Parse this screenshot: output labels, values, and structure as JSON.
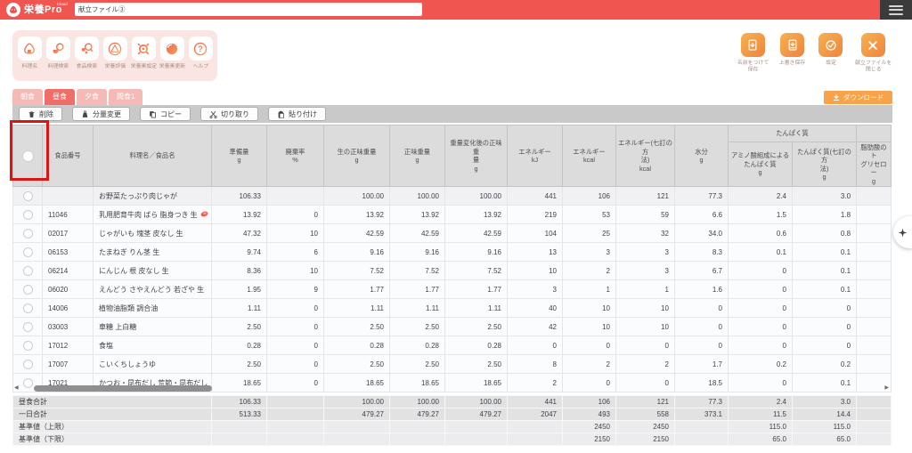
{
  "topbar": {
    "app_name": "栄養Pro",
    "app_badge": "Cloud",
    "file_name": "献立ファイル③"
  },
  "main_toolbar": {
    "items": [
      {
        "label": "料理名",
        "icon": "onigiri-icon"
      },
      {
        "label": "料理検索",
        "icon": "dish-search-icon"
      },
      {
        "label": "食品検索",
        "icon": "food-search-icon"
      },
      {
        "label": "栄養評価",
        "icon": "nutrition-pyramid-icon"
      },
      {
        "label": "栄養素設定",
        "icon": "nutrient-settings-gear-icon"
      },
      {
        "label": "栄養素更新",
        "icon": "nutrient-refresh-icon"
      },
      {
        "label": "ヘルプ",
        "icon": "help-icon"
      }
    ]
  },
  "file_actions": {
    "items": [
      {
        "label": "名前をつけて\n保存",
        "icon": "save-as-icon"
      },
      {
        "label": "上書き保存",
        "icon": "overwrite-save-icon"
      },
      {
        "label": "設定",
        "icon": "settings-icon"
      },
      {
        "label": "献立ファイルを\n閉じる",
        "icon": "close-file-icon"
      }
    ]
  },
  "meal_tabs": [
    {
      "label": "朝食",
      "active": false
    },
    {
      "label": "昼食",
      "active": true
    },
    {
      "label": "夕食",
      "active": false
    },
    {
      "label": "間食1",
      "active": false
    }
  ],
  "download_button": {
    "label": "ダウンロード",
    "icon": "download-icon"
  },
  "edit_toolbar": [
    {
      "label": "削除",
      "icon": "delete-icon"
    },
    {
      "label": "分量変更",
      "icon": "amount-change-icon"
    },
    {
      "label": "コピー",
      "icon": "copy-icon"
    },
    {
      "label": "切り取り",
      "icon": "cut-icon"
    },
    {
      "label": "貼り付け",
      "icon": "paste-icon"
    }
  ],
  "colors": {
    "topbar_red": "#f0554f",
    "panel_pink": "#fbe5e2",
    "tab_active": "#ef6f68",
    "tab_inactive": "#f6bab6",
    "download_orange": "#f8a24a",
    "annotation_red": "#d91616"
  },
  "table": {
    "protein_group_label": "たんぱく質",
    "columns": [
      {
        "label": "食品番号"
      },
      {
        "label": "料理名／食品名"
      },
      {
        "label": "準備量\ng"
      },
      {
        "label": "廃棄率\n%"
      },
      {
        "label": "生の正味重量\ng"
      },
      {
        "label": "正味重量\ng"
      },
      {
        "label": "重量変化後の正味重\n量\ng"
      },
      {
        "label": "エネルギー\nkJ"
      },
      {
        "label": "エネルギー\nkcal"
      },
      {
        "label": "エネルギー(七訂の方\n法)\nkcal"
      },
      {
        "label": "水分\ng"
      },
      {
        "label": "アミノ酸組成による\nたんぱく質\ng"
      },
      {
        "label": "たんぱく質(七訂の方\n法)\ng"
      },
      {
        "label": "脂肪酸のト\nグリセロー\ng"
      }
    ],
    "rows": [
      {
        "no": "",
        "name": "お野菜たっぷり肉じゃが",
        "recipe": true,
        "meat_icon": false,
        "values": [
          "106.33",
          "",
          "100.00",
          "100.00",
          "100.00",
          "441",
          "106",
          "121",
          "77.3",
          "2.4",
          "3.0",
          ""
        ]
      },
      {
        "no": "11046",
        "name": "乳用肥育牛肉 ばら 脂身つき 生",
        "recipe": false,
        "meat_icon": true,
        "values": [
          "13.92",
          "0",
          "13.92",
          "13.92",
          "13.92",
          "219",
          "53",
          "59",
          "6.6",
          "1.5",
          "1.8",
          ""
        ]
      },
      {
        "no": "02017",
        "name": "じゃがいも 塊茎 皮なし 生",
        "recipe": false,
        "meat_icon": false,
        "values": [
          "47.32",
          "10",
          "42.59",
          "42.59",
          "42.59",
          "104",
          "25",
          "32",
          "34.0",
          "0.6",
          "0.8",
          ""
        ]
      },
      {
        "no": "06153",
        "name": "たまねぎ りん茎 生",
        "recipe": false,
        "meat_icon": false,
        "values": [
          "9.74",
          "6",
          "9.16",
          "9.16",
          "9.16",
          "13",
          "3",
          "3",
          "8.3",
          "0.1",
          "0.1",
          ""
        ]
      },
      {
        "no": "06214",
        "name": "にんじん 根 皮なし 生",
        "recipe": false,
        "meat_icon": false,
        "values": [
          "8.36",
          "10",
          "7.52",
          "7.52",
          "7.52",
          "10",
          "2",
          "3",
          "6.7",
          "0",
          "0.1",
          ""
        ]
      },
      {
        "no": "06020",
        "name": "えんどう さやえんどう 若ざや 生",
        "recipe": false,
        "meat_icon": false,
        "values": [
          "1.95",
          "9",
          "1.77",
          "1.77",
          "1.77",
          "3",
          "1",
          "1",
          "1.6",
          "0",
          "0.1",
          ""
        ]
      },
      {
        "no": "14006",
        "name": "植物油脂類 調合油",
        "recipe": false,
        "meat_icon": false,
        "values": [
          "1.11",
          "0",
          "1.11",
          "1.11",
          "1.11",
          "40",
          "10",
          "10",
          "0",
          "0",
          "0",
          ""
        ]
      },
      {
        "no": "03003",
        "name": "車糖 上白糖",
        "recipe": false,
        "meat_icon": false,
        "values": [
          "2.50",
          "0",
          "2.50",
          "2.50",
          "2.50",
          "42",
          "10",
          "10",
          "0",
          "0",
          "0",
          ""
        ]
      },
      {
        "no": "17012",
        "name": "食塩",
        "recipe": false,
        "meat_icon": false,
        "values": [
          "0.28",
          "0",
          "0.28",
          "0.28",
          "0.28",
          "0",
          "0",
          "0",
          "0",
          "0",
          "0",
          ""
        ]
      },
      {
        "no": "17007",
        "name": "こいくちしょうゆ",
        "recipe": false,
        "meat_icon": false,
        "values": [
          "2.50",
          "0",
          "2.50",
          "2.50",
          "2.50",
          "8",
          "2",
          "2",
          "1.7",
          "0.2",
          "0.2",
          ""
        ]
      },
      {
        "no": "17021",
        "name": "かつお・昆布だし 荒節・昆布だし",
        "recipe": false,
        "meat_icon": false,
        "values": [
          "18.65",
          "0",
          "18.65",
          "18.65",
          "18.65",
          "2",
          "0",
          "0",
          "18.5",
          "0",
          "0.1",
          ""
        ]
      }
    ],
    "summary_rows": [
      {
        "label": "昼食合計",
        "light": false,
        "values": [
          "106.33",
          "",
          "100.00",
          "100.00",
          "100.00",
          "441",
          "106",
          "121",
          "77.3",
          "2.4",
          "3.0",
          ""
        ]
      },
      {
        "label": "一日合計",
        "light": false,
        "values": [
          "513.33",
          "",
          "479.27",
          "479.27",
          "479.27",
          "2047",
          "493",
          "558",
          "373.1",
          "11.5",
          "14.4",
          ""
        ]
      },
      {
        "label": "基準値（上限）",
        "light": true,
        "values": [
          "",
          "",
          "",
          "",
          "",
          "",
          "2450",
          "2450",
          "",
          "115.0",
          "115.0",
          ""
        ]
      },
      {
        "label": "基準値（下限）",
        "light": true,
        "values": [
          "",
          "",
          "",
          "",
          "",
          "",
          "2150",
          "2150",
          "",
          "65.0",
          "65.0",
          ""
        ]
      }
    ]
  }
}
